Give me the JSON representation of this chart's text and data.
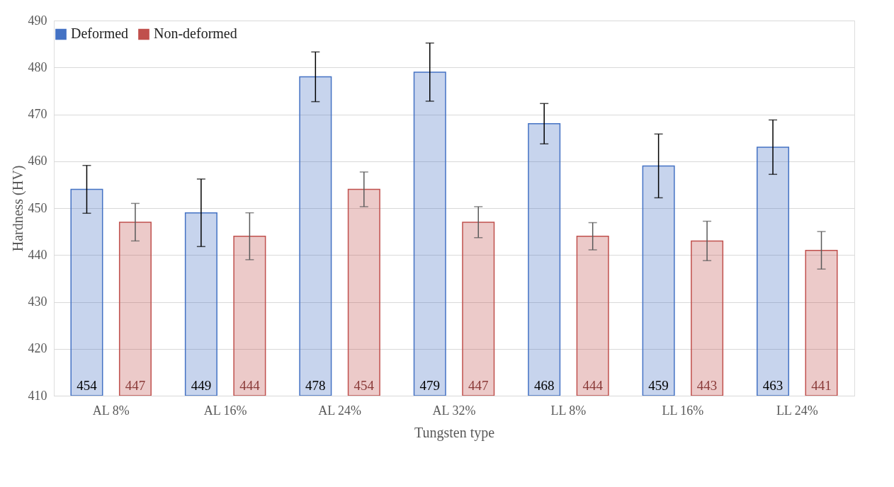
{
  "chart_data": {
    "type": "bar",
    "xlabel": "Tungsten type",
    "ylabel": "Hardness (HV)",
    "categories": [
      "AL 8%",
      "AL 16%",
      "AL 24%",
      "AL 32%",
      "LL 8%",
      "LL 16%",
      "LL 24%"
    ],
    "series": [
      {
        "name": "Deformed",
        "color": "#4472c4",
        "values": [
          454,
          449,
          478,
          479,
          468,
          459,
          463
        ],
        "errors": [
          5.1,
          7.2,
          5.3,
          6.2,
          4.3,
          6.8,
          5.8
        ]
      },
      {
        "name": "Non-deformed",
        "color": "#c0504d",
        "values": [
          447,
          444,
          454,
          447,
          444,
          443,
          441
        ],
        "errors": [
          4,
          5,
          3.7,
          3.3,
          2.9,
          4.2,
          4
        ]
      }
    ],
    "ylim": [
      410,
      490
    ],
    "yticks": [
      410,
      420,
      430,
      440,
      450,
      460,
      470,
      480,
      490
    ],
    "grid": "y",
    "legend": "top",
    "data_labels": true
  }
}
